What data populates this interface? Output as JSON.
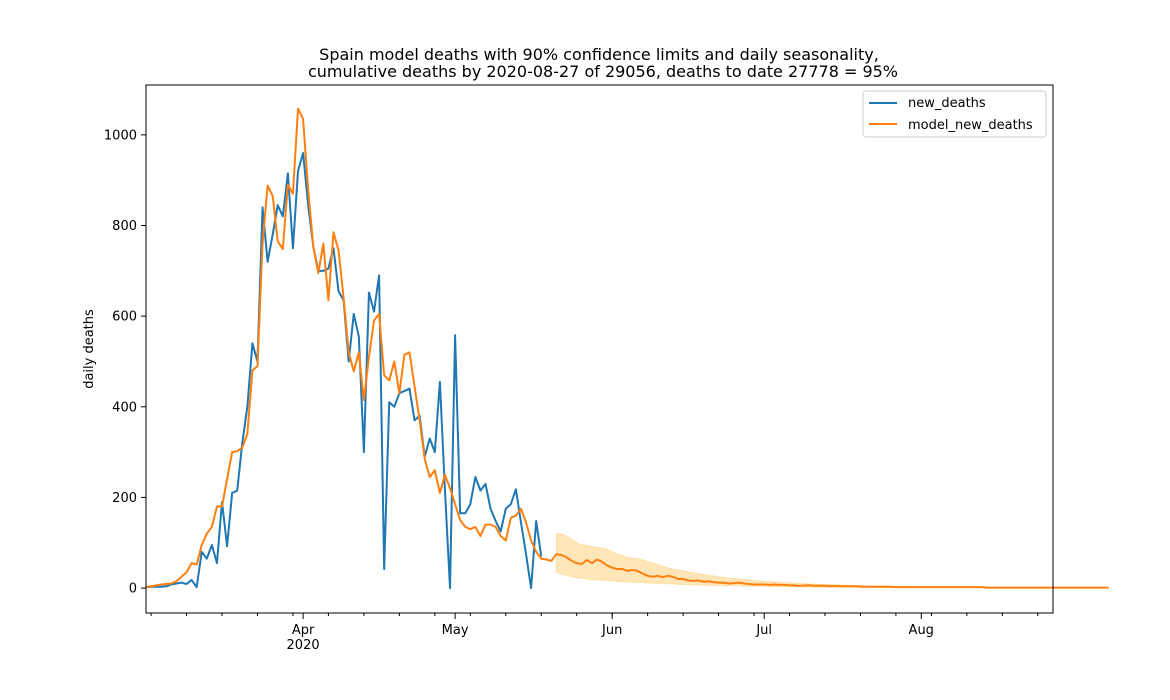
{
  "chart_data": {
    "type": "line",
    "title": "Spain model deaths with 90% confidence limits and daily seasonality,",
    "subtitle": "cumulative deaths by 2020-08-27 of 29056, deaths to date 27778 = 95%",
    "xlabel": "",
    "ylabel": "daily deaths",
    "xlim": [
      "2020-03-01",
      "2020-08-27"
    ],
    "ylim": [
      -55,
      1110
    ],
    "yticks": [
      0,
      200,
      400,
      600,
      800,
      1000
    ],
    "xticks": [
      {
        "date": "2020-04-01",
        "label": "Apr",
        "sublabel": "2020"
      },
      {
        "date": "2020-05-01",
        "label": "May",
        "sublabel": ""
      },
      {
        "date": "2020-06-01",
        "label": "Jun",
        "sublabel": ""
      },
      {
        "date": "2020-07-01",
        "label": "Jul",
        "sublabel": ""
      },
      {
        "date": "2020-08-01",
        "label": "Aug",
        "sublabel": ""
      }
    ],
    "grid": false,
    "legend_position": "top-right",
    "colors": {
      "new_deaths": "#1f77b4",
      "model_new_deaths": "#ff7f0e",
      "band": "#ffd27f"
    },
    "series": [
      {
        "name": "new_deaths",
        "start": "2020-03-01",
        "values": [
          2,
          3,
          3,
          3,
          4,
          8,
          10,
          12,
          9,
          18,
          2,
          80,
          65,
          95,
          55,
          190,
          92,
          210,
          215,
          320,
          400,
          540,
          500,
          840,
          720,
          780,
          845,
          820,
          915,
          750,
          920,
          960,
          845,
          755,
          700,
          700,
          705,
          750,
          655,
          635,
          500,
          605,
          555,
          300,
          652,
          610,
          690,
          42,
          410,
          400,
          430,
          435,
          440,
          370,
          380,
          290,
          330,
          300,
          455,
          215,
          0,
          558,
          165,
          165,
          185,
          245,
          215,
          230,
          175,
          148,
          125,
          175,
          185,
          218,
          145,
          75,
          0,
          148,
          70
        ]
      },
      {
        "name": "model_new_deaths",
        "start": "2020-03-01",
        "values": [
          2,
          4,
          6,
          8,
          9,
          10,
          15,
          25,
          35,
          55,
          52,
          95,
          120,
          135,
          180,
          180,
          240,
          300,
          302,
          310,
          340,
          480,
          490,
          760,
          888,
          865,
          765,
          748,
          890,
          870,
          1058,
          1035,
          880,
          755,
          695,
          760,
          635,
          785,
          745,
          640,
          520,
          478,
          520,
          415,
          510,
          590,
          605,
          470,
          458,
          500,
          430,
          515,
          520,
          445,
          370,
          285,
          245,
          260,
          210,
          250,
          220,
          185,
          150,
          135,
          130,
          135,
          115,
          140,
          140,
          135,
          115,
          105,
          155,
          160,
          175,
          145,
          105,
          80,
          65,
          63,
          60,
          75,
          73,
          68,
          60,
          55,
          53,
          62,
          55,
          63,
          58,
          50,
          45,
          42,
          42,
          38,
          40,
          38,
          32,
          27,
          25,
          27,
          24,
          27,
          25,
          20,
          20,
          17,
          16,
          17,
          14,
          15,
          13,
          12,
          12,
          10,
          11,
          12,
          10,
          9,
          8,
          8,
          8,
          7,
          8,
          7,
          7,
          6,
          6,
          5,
          6,
          6,
          5,
          5,
          5,
          4,
          5,
          4,
          4,
          4,
          4,
          3,
          3,
          3,
          3,
          3,
          3,
          3,
          2,
          2,
          2,
          2,
          2,
          2,
          2,
          2,
          2,
          2,
          2,
          2,
          2,
          2,
          2,
          2,
          2,
          2,
          1,
          1,
          1,
          1,
          1,
          1,
          1,
          1,
          1,
          1,
          1,
          1,
          1,
          1,
          1,
          1,
          1,
          1,
          1,
          1,
          1,
          1,
          1,
          1,
          1
        ]
      }
    ],
    "confidence_band": {
      "start": "2020-05-21",
      "lower": [
        35,
        30,
        28,
        25,
        22,
        22,
        20,
        18,
        18,
        17,
        16,
        16,
        15,
        14,
        13,
        13,
        12,
        12,
        11,
        11,
        10,
        10,
        9,
        9,
        8,
        8,
        8,
        7,
        7,
        7,
        6,
        6,
        6,
        5,
        5,
        5,
        5,
        4,
        4,
        4,
        4,
        4,
        3,
        3,
        3,
        3,
        3,
        3,
        3,
        2,
        2,
        2,
        2,
        2,
        2,
        2,
        2,
        2,
        2,
        2,
        2,
        2,
        2,
        1,
        1,
        1,
        1,
        1,
        1,
        1,
        1,
        1,
        1,
        1,
        1,
        1,
        1,
        1,
        1,
        1,
        1,
        1,
        1,
        1,
        1,
        1,
        1,
        1,
        1,
        1,
        1,
        1,
        1,
        1,
        1,
        1,
        1,
        1,
        1
      ],
      "upper": [
        120,
        120,
        115,
        108,
        100,
        95,
        95,
        92,
        90,
        88,
        85,
        80,
        75,
        72,
        68,
        66,
        65,
        62,
        58,
        55,
        52,
        48,
        45,
        42,
        40,
        38,
        36,
        34,
        32,
        30,
        28,
        27,
        25,
        24,
        22,
        21,
        20,
        19,
        18,
        17,
        16,
        15,
        14,
        14,
        13,
        12,
        12,
        11,
        10,
        10,
        9,
        9,
        8,
        8,
        8,
        7,
        7,
        7,
        6,
        6,
        6,
        5,
        5,
        5,
        5,
        5,
        4,
        4,
        4,
        4,
        4,
        3,
        3,
        3,
        3,
        3,
        3,
        3,
        3,
        2,
        2,
        2,
        2,
        2,
        2,
        2,
        2,
        2,
        2,
        2,
        2,
        2,
        2,
        2,
        2,
        2,
        2,
        2,
        2
      ]
    },
    "legend": [
      {
        "key": "new_deaths",
        "label": "new_deaths"
      },
      {
        "key": "model_new_deaths",
        "label": "model_new_deaths"
      }
    ]
  }
}
